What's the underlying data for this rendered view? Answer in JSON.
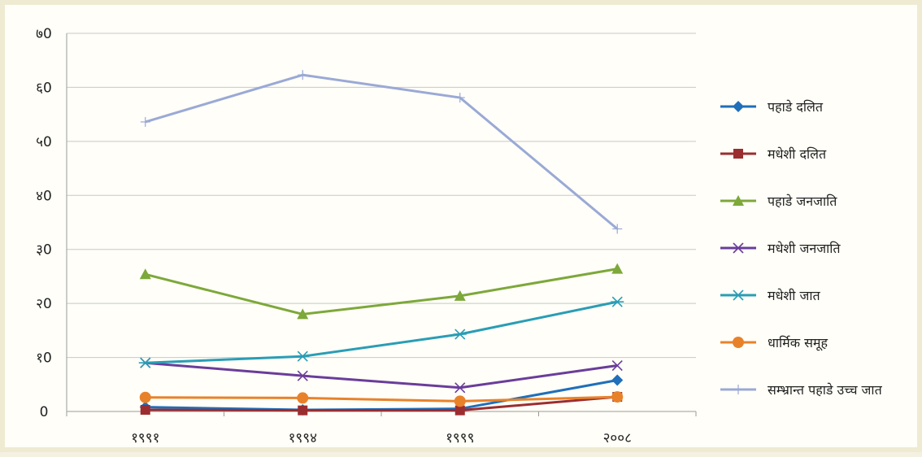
{
  "chart_data": {
    "type": "line",
    "categories": [
      "१९९१",
      "१९९४",
      "१९९९",
      "२००८"
    ],
    "y_ticks": [
      "0",
      "१0",
      "२0",
      "३0",
      "४0",
      "५0",
      "६0",
      "७0"
    ],
    "ylim": [
      0,
      70
    ],
    "grid": true,
    "legend_position": "right",
    "series": [
      {
        "name": "पहाडे दलित",
        "values": [
          0.8,
          0.3,
          0.5,
          5.8
        ],
        "color": "#1f6fba",
        "marker": "diamond"
      },
      {
        "name": "मधेशी दलित",
        "values": [
          0.3,
          0.2,
          0.2,
          2.7
        ],
        "color": "#9b2d30",
        "marker": "square"
      },
      {
        "name": "पहाडे जनजाति",
        "values": [
          25.4,
          18.0,
          21.4,
          26.4
        ],
        "color": "#7da83a",
        "marker": "triangle"
      },
      {
        "name": "मधेशी जनजाति",
        "values": [
          9.0,
          6.6,
          4.4,
          8.5
        ],
        "color": "#6a3d9a",
        "marker": "x"
      },
      {
        "name": "मधेशी जात",
        "values": [
          9.0,
          10.2,
          14.3,
          20.3
        ],
        "color": "#2a9db5",
        "marker": "star"
      },
      {
        "name": "धार्मिक समूह",
        "values": [
          2.6,
          2.5,
          1.9,
          2.7
        ],
        "color": "#e8822a",
        "marker": "circle"
      },
      {
        "name": "सम्भ्रान्त पहाडे उच्च जात",
        "values": [
          53.6,
          62.3,
          58.1,
          33.8
        ],
        "color": "#9aa9d6",
        "marker": "plus"
      }
    ]
  }
}
